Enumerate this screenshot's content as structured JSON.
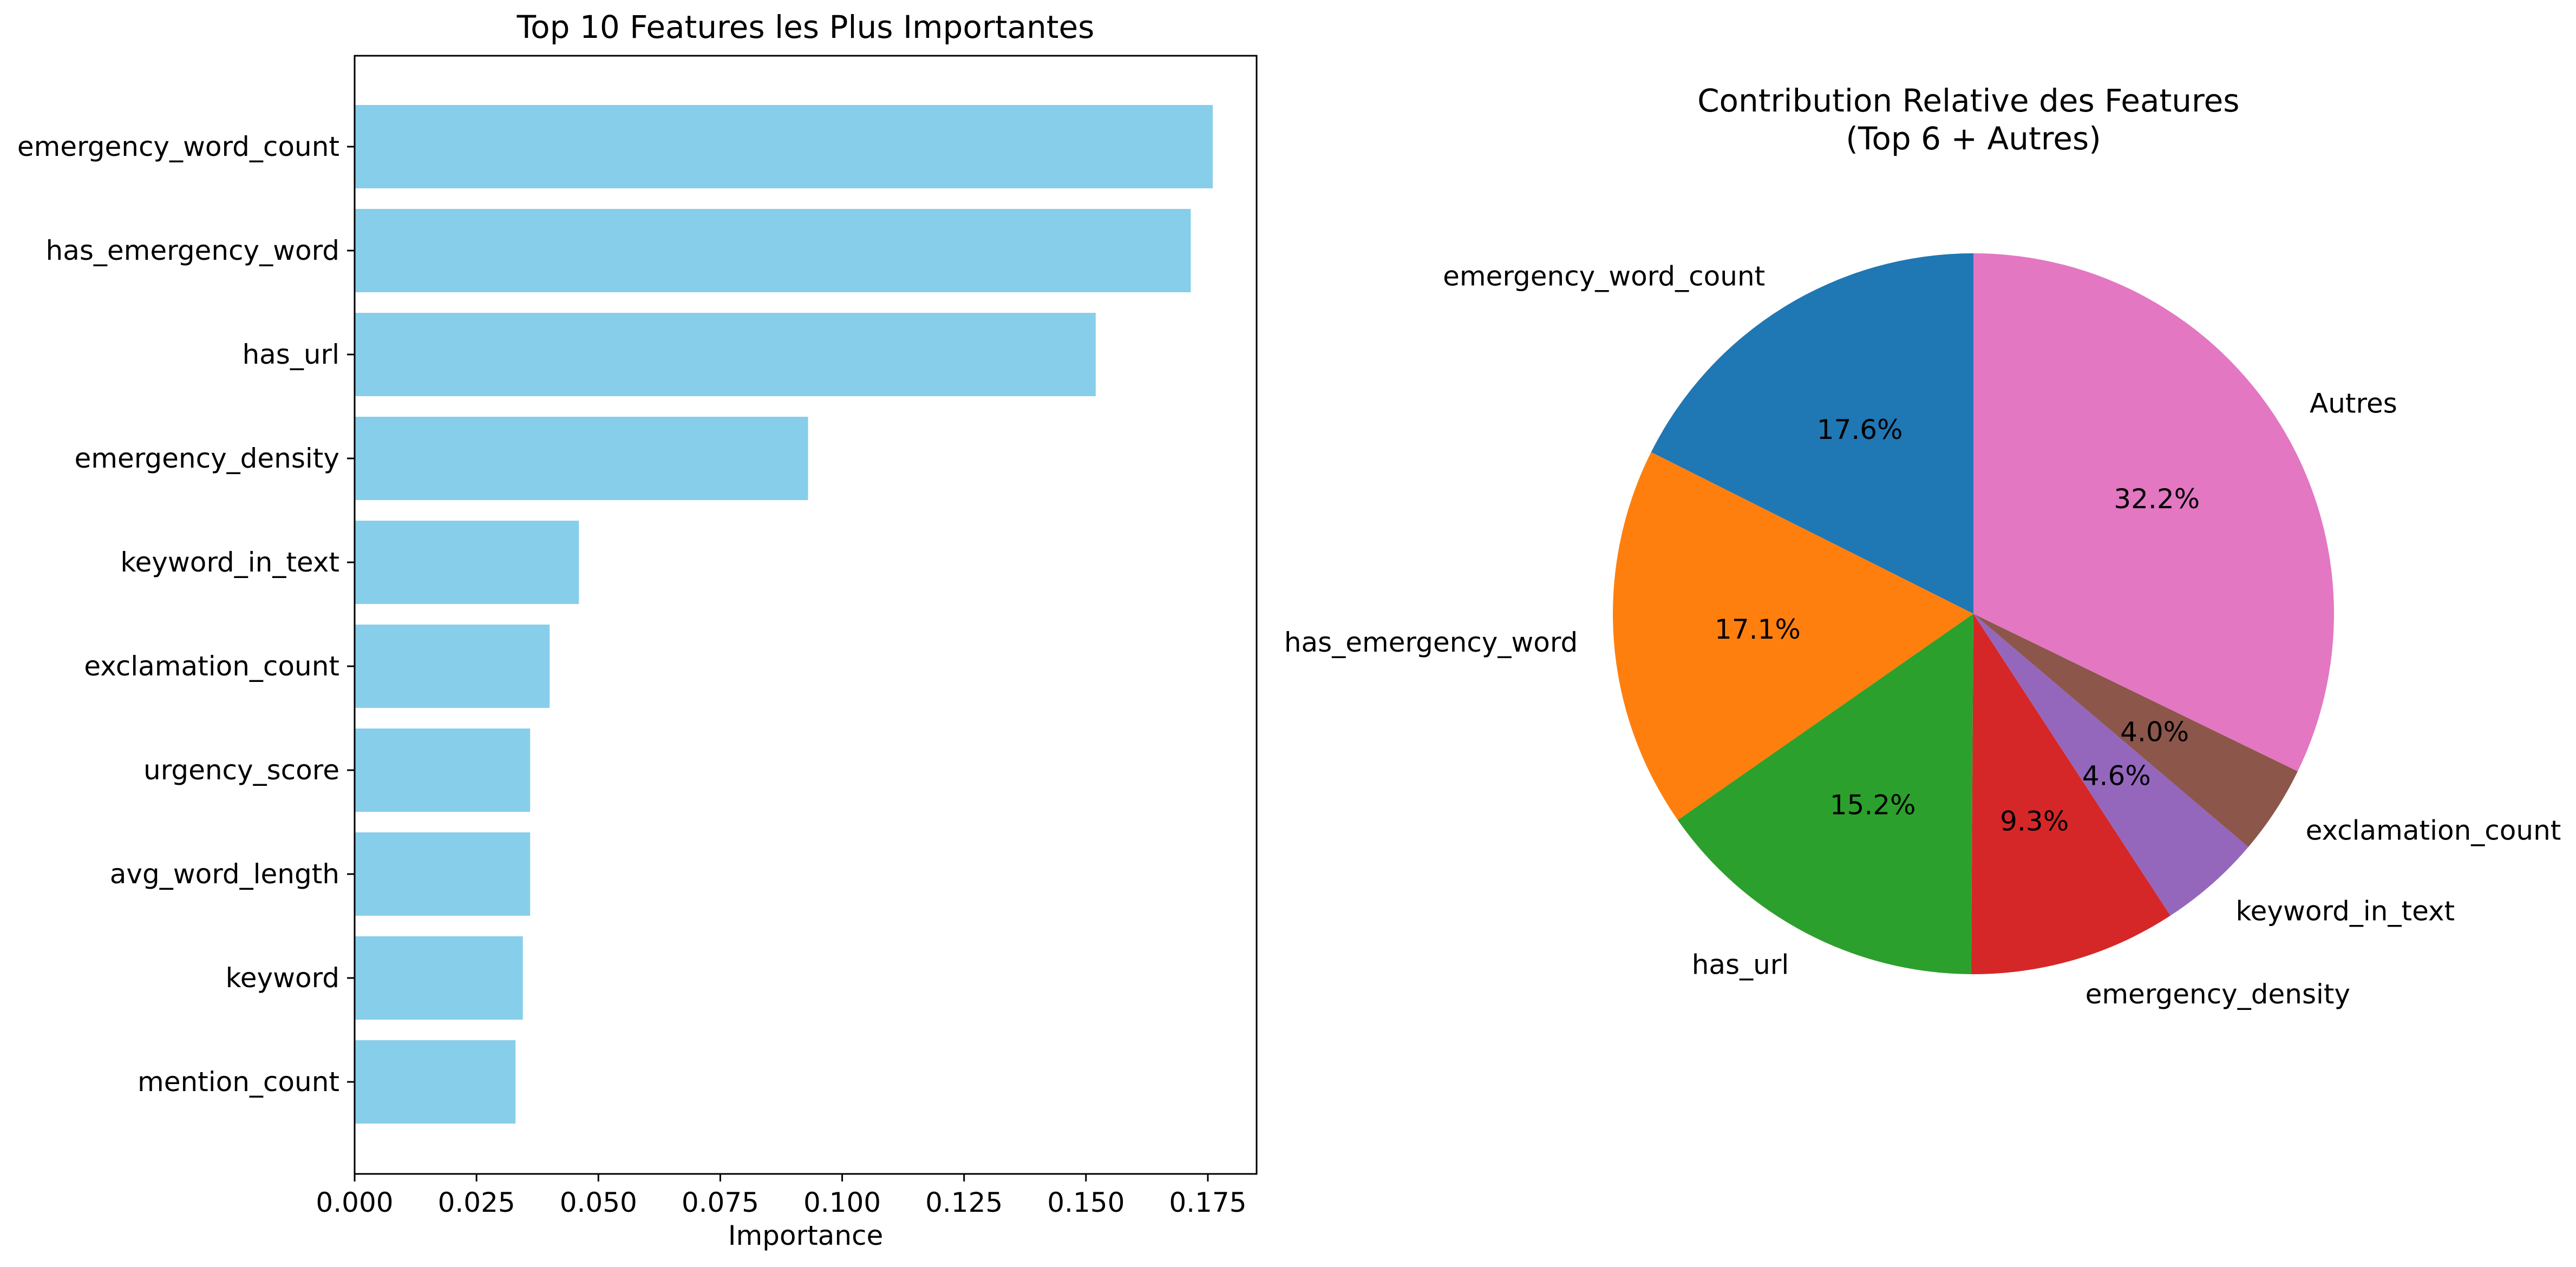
{
  "chart_data": [
    {
      "type": "bar",
      "orientation": "horizontal",
      "title": "Top 10 Features les Plus Importantes",
      "xlabel": "Importance",
      "ylabel": "",
      "xlim": [
        0,
        0.185
      ],
      "xticks": [
        "0.000",
        "0.025",
        "0.050",
        "0.075",
        "0.100",
        "0.125",
        "0.150",
        "0.175"
      ],
      "xtick_values": [
        0,
        0.025,
        0.05,
        0.075,
        0.1,
        0.125,
        0.15,
        0.175
      ],
      "categories": [
        "emergency_word_count",
        "has_emergency_word",
        "has_url",
        "emergency_density",
        "keyword_in_text",
        "exclamation_count",
        "urgency_score",
        "avg_word_length",
        "keyword",
        "mention_count"
      ],
      "values": [
        0.176,
        0.1715,
        0.152,
        0.093,
        0.046,
        0.04,
        0.036,
        0.036,
        0.0345,
        0.033
      ],
      "bar_color": "#87CEEB",
      "grid": false
    },
    {
      "type": "pie",
      "title": "Contribution Relative des Features\n(Top 6 + Autres)",
      "labels": [
        "emergency_word_count",
        "has_emergency_word",
        "has_url",
        "emergency_density",
        "keyword_in_text",
        "exclamation_count",
        "Autres"
      ],
      "values": [
        17.6,
        17.1,
        15.2,
        9.3,
        4.6,
        4.0,
        32.2
      ],
      "pct_labels": [
        "17.6%",
        "17.1%",
        "15.2%",
        "9.3%",
        "4.6%",
        "4.0%",
        "32.2%"
      ],
      "colors": [
        "#1f77b4",
        "#ff7f0e",
        "#2ca02c",
        "#d62728",
        "#9467bd",
        "#8c564b",
        "#e377c2"
      ],
      "start_angle": 90,
      "direction": "counterclockwise"
    }
  ]
}
